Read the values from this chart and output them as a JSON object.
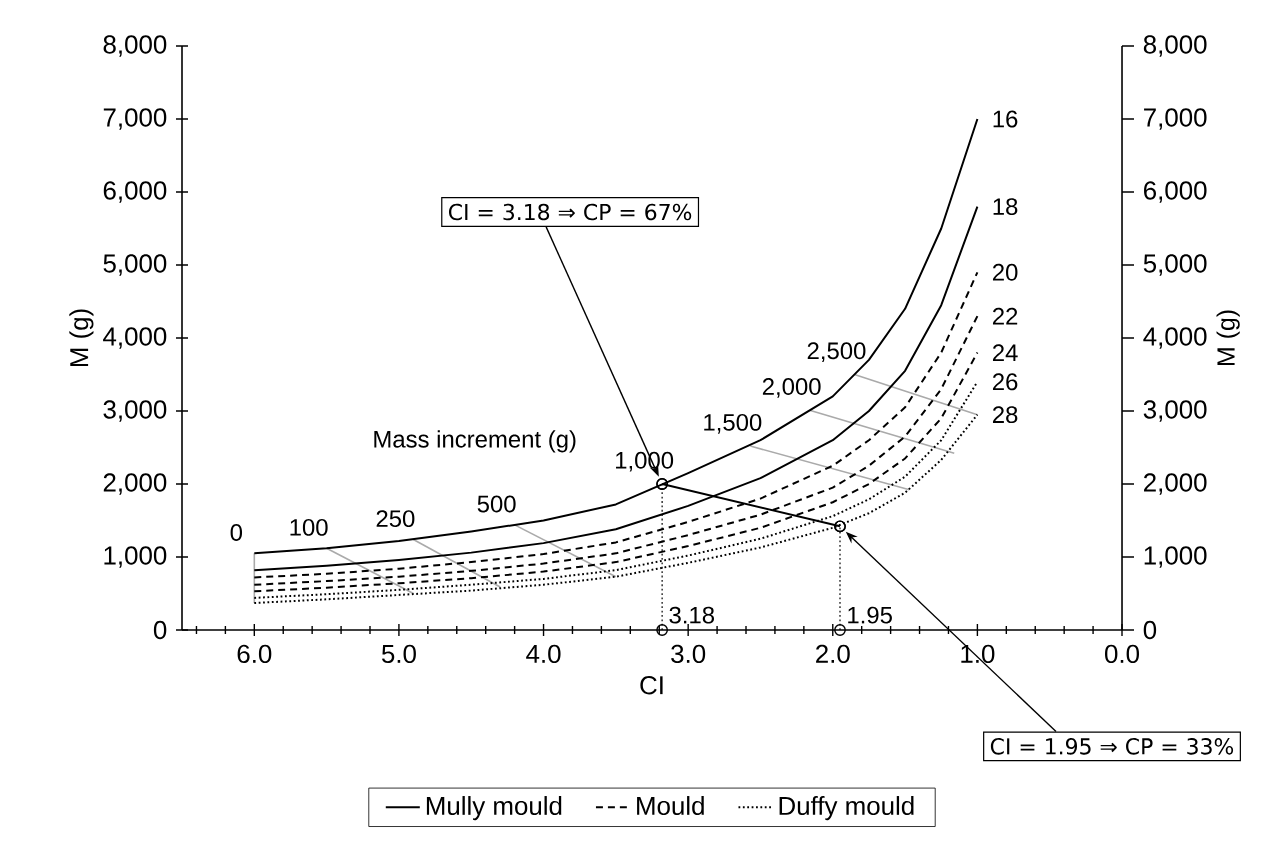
{
  "chart_data": {
    "type": "line",
    "xlabel": "CI",
    "ylabel": "M (g)",
    "y2label": "M (g)",
    "x": [
      6.0,
      5.5,
      5.0,
      4.5,
      4.0,
      3.5,
      3.0,
      2.5,
      2.0,
      1.75,
      1.5,
      1.25,
      1.0
    ],
    "series": [
      {
        "color": "#aaaaaa",
        "line_style": "solid",
        "x": [
          6.0,
          6.0
        ],
        "values": [
          1050,
          370
        ]
      },
      {
        "color": "#aaaaaa",
        "line_style": "solid",
        "x": [
          5.5,
          4.9
        ],
        "values": [
          1120,
          500
        ]
      },
      {
        "color": "#aaaaaa",
        "line_style": "solid",
        "x": [
          4.9,
          4.3
        ],
        "values": [
          1240,
          590
        ]
      },
      {
        "color": "#aaaaaa",
        "line_style": "solid",
        "x": [
          4.2,
          3.5
        ],
        "values": [
          1440,
          730
        ]
      },
      {
        "color": "#000000",
        "line_style": "solid",
        "marker": "circle",
        "x": [
          3.18,
          1.95
        ],
        "values": [
          2000,
          1420
        ]
      },
      {
        "color": "#aaaaaa",
        "line_style": "solid",
        "x": [
          2.57,
          1.47
        ],
        "values": [
          2520,
          1920
        ]
      },
      {
        "color": "#aaaaaa",
        "line_style": "solid",
        "x": [
          2.16,
          1.16
        ],
        "values": [
          3010,
          2420
        ]
      },
      {
        "color": "#aaaaaa",
        "line_style": "solid",
        "x": [
          1.85,
          1.0
        ],
        "values": [
          3500,
          2950
        ]
      },
      {
        "name": "Mully mould",
        "color": "#000000",
        "line_style": "solid",
        "values": [
          1050,
          1120,
          1220,
          1350,
          1500,
          1720,
          2150,
          2600,
          3200,
          3700,
          4400,
          5500,
          7000
        ]
      },
      {
        "color": "#000000",
        "line_style": "solid",
        "values": [
          820,
          880,
          960,
          1060,
          1190,
          1380,
          1700,
          2080,
          2600,
          3000,
          3550,
          4450,
          5800
        ]
      },
      {
        "name": "Mould",
        "color": "#000000",
        "line_style": "dashed",
        "values": [
          720,
          770,
          840,
          930,
          1040,
          1200,
          1480,
          1800,
          2250,
          2600,
          3050,
          3800,
          4900
        ]
      },
      {
        "color": "#000000",
        "line_style": "dashed",
        "values": [
          620,
          670,
          730,
          810,
          910,
          1050,
          1300,
          1580,
          1950,
          2250,
          2650,
          3300,
          4300
        ]
      },
      {
        "color": "#000000",
        "line_style": "dashed",
        "values": [
          530,
          580,
          640,
          710,
          800,
          930,
          1150,
          1400,
          1750,
          2000,
          2350,
          2900,
          3800
        ]
      },
      {
        "name": "Duffy mould",
        "color": "#000000",
        "line_style": "dotted",
        "values": [
          440,
          490,
          550,
          620,
          700,
          820,
          1020,
          1250,
          1560,
          1790,
          2100,
          2600,
          3400
        ]
      },
      {
        "color": "#000000",
        "line_style": "dotted",
        "values": [
          370,
          420,
          480,
          540,
          620,
          730,
          920,
          1130,
          1400,
          1600,
          1880,
          2330,
          2950
        ]
      },
      {
        "color": "#000000",
        "line_style": "dotted",
        "marker": "circle",
        "x": [
          3.18,
          3.18
        ],
        "values": [
          0,
          2000
        ]
      },
      {
        "color": "#000000",
        "line_style": "dotted",
        "marker": "circle",
        "x": [
          1.95,
          1.95
        ],
        "values": [
          0,
          1420
        ]
      }
    ],
    "annotations": [
      {
        "text": "CI = 3.18 ⇒ CP = 67%",
        "x": 3.18,
        "y": 2000
      },
      {
        "text": "CI = 1.95 ⇒ CP = 33%",
        "x": 1.95,
        "y": 1420
      },
      "Mass increment (g)",
      {
        "text": "0",
        "x": 6.0,
        "y": 1050
      },
      {
        "text": "100",
        "x": 5.5,
        "y": 1120
      },
      {
        "text": "250",
        "x": 4.9,
        "y": 1240
      },
      {
        "text": "500",
        "x": 4.2,
        "y": 1440
      },
      {
        "text": "1,000",
        "x": 3.18,
        "y": 2000
      },
      {
        "text": "1,500",
        "x": 2.57,
        "y": 2520
      },
      {
        "text": "2,000",
        "x": 2.16,
        "y": 3010
      },
      {
        "text": "2,500",
        "x": 1.85,
        "y": 3500
      },
      {
        "text": "16",
        "x": 1.0,
        "y": 7000
      },
      {
        "text": "18",
        "x": 1.0,
        "y": 5800
      },
      {
        "text": "20",
        "x": 1.0,
        "y": 4900
      },
      {
        "text": "22",
        "x": 1.0,
        "y": 4300
      },
      {
        "text": "24",
        "x": 1.0,
        "y": 3800
      },
      {
        "text": "26",
        "x": 1.0,
        "y": 3400
      },
      {
        "text": "28",
        "x": 1.0,
        "y": 2950
      },
      {
        "text": "3.18",
        "x": 3.18,
        "y": 0
      },
      {
        "text": "1.95",
        "x": 1.95,
        "y": 0
      }
    ],
    "xlim": [
      6.5,
      0.0
    ],
    "xticks": [
      {
        "value": 6.4,
        "label": null
      },
      {
        "value": 6.2,
        "label": null
      },
      {
        "value": 6.0,
        "label": "6.0"
      },
      {
        "value": 5.8,
        "label": null
      },
      {
        "value": 5.6,
        "label": null
      },
      {
        "value": 5.4,
        "label": null
      },
      {
        "value": 5.2,
        "label": null
      },
      {
        "value": 5.0,
        "label": "5.0"
      },
      {
        "value": 4.8,
        "label": null
      },
      {
        "value": 4.6,
        "label": null
      },
      {
        "value": 4.4,
        "label": null
      },
      {
        "value": 4.2,
        "label": null
      },
      {
        "value": 4.0,
        "label": "4.0"
      },
      {
        "value": 3.8,
        "label": null
      },
      {
        "value": 3.6,
        "label": null
      },
      {
        "value": 3.4,
        "label": null
      },
      {
        "value": 3.2,
        "label": null
      },
      {
        "value": 3.0,
        "label": "3.0"
      },
      {
        "value": 2.8,
        "label": null
      },
      {
        "value": 2.6,
        "label": null
      },
      {
        "value": 2.4,
        "label": null
      },
      {
        "value": 2.2,
        "label": null
      },
      {
        "value": 2.0,
        "label": "2.0"
      },
      {
        "value": 1.8,
        "label": null
      },
      {
        "value": 1.6,
        "label": null
      },
      {
        "value": 1.4,
        "label": null
      },
      {
        "value": 1.2,
        "label": null
      },
      {
        "value": 1.0,
        "label": "1.0"
      },
      {
        "value": 0.8,
        "label": null
      },
      {
        "value": 0.6,
        "label": null
      },
      {
        "value": 0.4,
        "label": null
      },
      {
        "value": 0.2,
        "label": null
      },
      {
        "value": 0.0,
        "label": "0.0"
      }
    ],
    "ylim": [
      0,
      8000
    ],
    "yticks": [
      0,
      {
        "value": 1000,
        "label": "1,000"
      },
      {
        "value": 2000,
        "label": "2,000"
      },
      {
        "value": 3000,
        "label": "3,000"
      },
      {
        "value": 4000,
        "label": "4,000"
      },
      {
        "value": 5000,
        "label": "5,000"
      },
      {
        "value": 6000,
        "label": "6,000"
      },
      {
        "value": 7000,
        "label": "7,000"
      },
      {
        "value": 8000,
        "label": "8,000"
      }
    ],
    "y2lim": [
      0,
      8000
    ],
    "y2ticks": [
      0,
      {
        "value": 1000,
        "label": "1,000"
      },
      {
        "value": 2000,
        "label": "2,000"
      },
      {
        "value": 3000,
        "label": "3,000"
      },
      {
        "value": 4000,
        "label": "4,000"
      },
      {
        "value": 5000,
        "label": "5,000"
      },
      {
        "value": 6000,
        "label": "6,000"
      },
      {
        "value": 7000,
        "label": "7,000"
      },
      {
        "value": 8000,
        "label": "8,000"
      }
    ],
    "grid": false,
    "legend": "bottom",
    "marker": "none"
  }
}
